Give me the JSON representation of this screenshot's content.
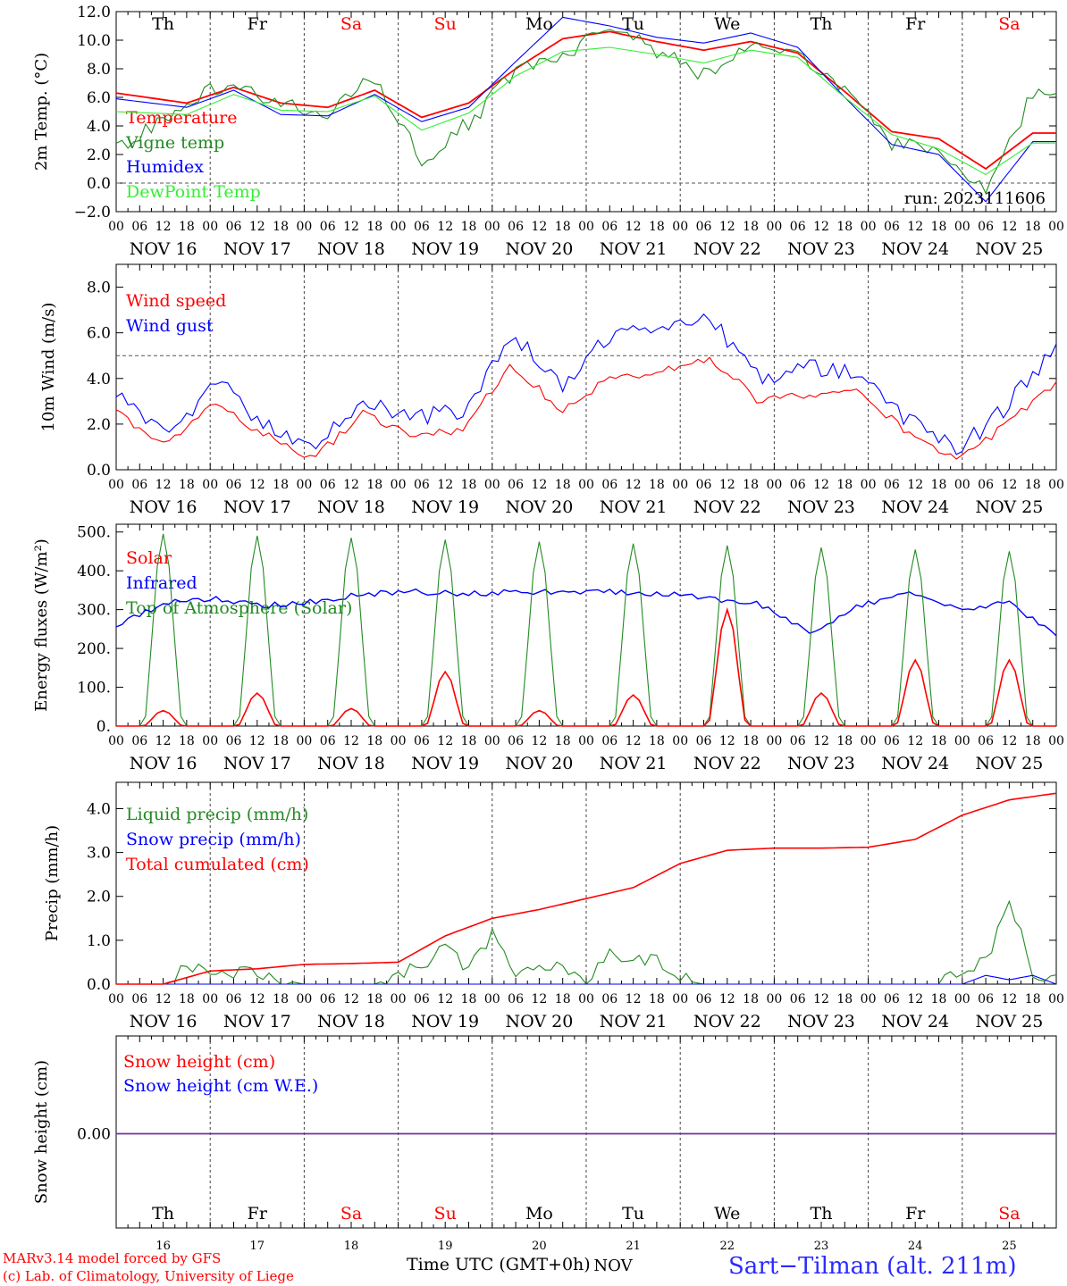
{
  "chart_data": [
    {
      "type": "line",
      "ylabel": "2m Temp. (°C)",
      "ylim": [
        -2,
        12
      ],
      "yticks": [
        "-2.0",
        "0.0",
        "2.0",
        "4.0",
        "6.0",
        "8.0",
        "10.0",
        "12.0"
      ],
      "reference_line": 0,
      "annotation": "run: 2023111606",
      "day_labels": [
        "Th",
        "Fr",
        "Sa",
        "Su",
        "Mo",
        "Tu",
        "We",
        "Th",
        "Fr",
        "Sa"
      ],
      "series": [
        {
          "name": "Temperature",
          "color": "#ff0000",
          "x": [
            0,
            18,
            30,
            42,
            54,
            66,
            78,
            90,
            102,
            114,
            126,
            138,
            150,
            162,
            174,
            186,
            198,
            210,
            222,
            234
          ],
          "values": [
            6.3,
            5.6,
            6.7,
            5.6,
            5.3,
            6.5,
            4.6,
            5.6,
            8.0,
            10.1,
            10.6,
            9.9,
            9.3,
            9.9,
            9.1,
            6.4,
            3.6,
            3.1,
            1.0,
            3.5
          ]
        },
        {
          "name": "Vigne temp",
          "color": "#228b22",
          "x": [
            0,
            18,
            30,
            42,
            54,
            66,
            78,
            90,
            102,
            114,
            126,
            138,
            150,
            162,
            174,
            186,
            198,
            210,
            222,
            234
          ],
          "values": [
            2.5,
            5.4,
            7.4,
            5.4,
            5.0,
            7.4,
            1.6,
            4.2,
            7.8,
            9.0,
            10.9,
            9.2,
            7.5,
            9.4,
            8.9,
            6.6,
            2.8,
            2.0,
            -0.5,
            6.2
          ]
        },
        {
          "name": "Humidex",
          "color": "#0000ff",
          "x": [
            0,
            18,
            30,
            42,
            54,
            66,
            78,
            90,
            102,
            114,
            126,
            138,
            150,
            162,
            174,
            186,
            198,
            210,
            222,
            234
          ],
          "values": [
            5.9,
            5.3,
            6.5,
            4.8,
            4.7,
            6.2,
            4.3,
            5.3,
            8.5,
            11.6,
            11.0,
            10.2,
            9.8,
            10.5,
            9.5,
            6.0,
            2.7,
            2.0,
            -1.3,
            2.9
          ]
        },
        {
          "name": "DewPoint Temp",
          "color": "#33ee33",
          "x": [
            0,
            18,
            30,
            42,
            54,
            66,
            78,
            90,
            102,
            114,
            126,
            138,
            150,
            162,
            174,
            186,
            198,
            210,
            222,
            234
          ],
          "values": [
            5.0,
            4.8,
            6.2,
            5.1,
            5.0,
            6.1,
            3.7,
            4.9,
            7.5,
            9.2,
            9.5,
            9.0,
            8.4,
            9.3,
            8.8,
            6.0,
            3.4,
            2.4,
            0.6,
            2.8
          ]
        }
      ]
    },
    {
      "type": "line",
      "ylabel": "10m Wind (m/s)",
      "ylim": [
        0,
        9
      ],
      "yticks": [
        "0.0",
        "2.0",
        "4.0",
        "6.0",
        "8.0"
      ],
      "reference_line": 5,
      "series": [
        {
          "name": "Wind speed",
          "color": "#ff0000",
          "values": [
            2.5,
            1.0,
            2.9,
            1.5,
            0.5,
            2.5,
            1.5,
            1.8,
            4.6,
            2.6,
            4.0,
            4.3,
            4.9,
            3.0,
            3.3,
            3.4,
            1.6,
            0.4,
            2.0,
            3.9
          ]
        },
        {
          "name": "Wind gust",
          "color": "#0000ff",
          "values": [
            3.3,
            1.4,
            3.9,
            2.0,
            0.9,
            3.1,
            2.3,
            2.5,
            6.1,
            3.5,
            6.0,
            6.3,
            6.6,
            4.0,
            4.5,
            4.3,
            2.2,
            0.8,
            2.8,
            5.4
          ]
        }
      ]
    },
    {
      "type": "line",
      "ylabel": "Energy fluxes (W/m²)",
      "ylim": [
        0,
        520
      ],
      "yticks": [
        "0.",
        "100.",
        "200.",
        "300.",
        "400.",
        "500."
      ],
      "series": [
        {
          "name": "Solar",
          "color": "#ff0000",
          "peaks": [
            40,
            85,
            45,
            140,
            40,
            80,
            300,
            85,
            170,
            170
          ]
        },
        {
          "name": "Infrared",
          "color": "#0000ff",
          "values": [
            255,
            320,
            330,
            310,
            320,
            340,
            345,
            340,
            345,
            345,
            345,
            340,
            330,
            315,
            240,
            310,
            340,
            300,
            320,
            240
          ]
        },
        {
          "name": "Top of Atmosphere (Solar)",
          "color": "#228b22",
          "peaks": [
            495,
            490,
            485,
            480,
            475,
            470,
            465,
            460,
            455,
            450
          ]
        }
      ]
    },
    {
      "type": "line",
      "ylabel": "Precip (mm/h)",
      "ylim": [
        0,
        4.6
      ],
      "yticks": [
        "0.0",
        "1.0",
        "2.0",
        "3.0",
        "4.0"
      ],
      "series": [
        {
          "name": "Liquid precip (mm/h)",
          "color": "#228b22",
          "x": [
            0,
            12,
            18,
            24,
            36,
            48,
            60,
            66,
            72,
            78,
            84,
            90,
            96,
            102,
            108,
            114,
            120,
            126,
            132,
            138,
            144,
            150,
            156,
            162,
            168,
            174,
            180,
            186,
            192,
            198,
            204,
            210,
            216,
            222,
            228,
            234,
            240
          ],
          "values": [
            0,
            0,
            0.4,
            0.3,
            0.2,
            0,
            0,
            0,
            0.2,
            0.4,
            0.9,
            0.3,
            1.2,
            0.3,
            0.5,
            0.4,
            0,
            0.7,
            0.6,
            0.5,
            0.1,
            0,
            0,
            0,
            0,
            0,
            0,
            0,
            0,
            0,
            0,
            0,
            0.4,
            0.5,
            2.0,
            0.3,
            0.1
          ]
        },
        {
          "name": "Snow precip (mm/h)",
          "color": "#0000ff",
          "x": [
            0,
            210,
            216,
            222,
            228,
            234,
            240
          ],
          "values": [
            0,
            0,
            0,
            0.2,
            0.1,
            0.2,
            0
          ]
        },
        {
          "name": "Total cumulated (cm)",
          "color": "#ff0000",
          "x": [
            0,
            12,
            24,
            36,
            48,
            60,
            72,
            84,
            96,
            108,
            120,
            132,
            144,
            156,
            168,
            180,
            192,
            204,
            216,
            228,
            240
          ],
          "values": [
            0,
            0,
            0.3,
            0.35,
            0.45,
            0.47,
            0.5,
            1.1,
            1.5,
            1.7,
            1.95,
            2.2,
            2.75,
            3.05,
            3.1,
            3.1,
            3.12,
            3.3,
            3.85,
            4.2,
            4.35
          ]
        }
      ]
    },
    {
      "type": "line",
      "ylabel": "Snow height (cm)",
      "yticks": [
        "0.00"
      ],
      "series": [
        {
          "name": "Snow height (cm)",
          "color": "#ff0000",
          "values": [
            0,
            0
          ]
        },
        {
          "name": "Snow height (cm W.E.)",
          "color": "#0000ff",
          "values": [
            0,
            0
          ]
        }
      ]
    }
  ],
  "time_axis": {
    "hour_ticks": [
      "00",
      "06",
      "12",
      "18"
    ],
    "date_labels": [
      "NOV 16",
      "NOV 17",
      "NOV 18",
      "NOV 19",
      "NOV 20",
      "NOV 21",
      "NOV 22",
      "NOV 23",
      "NOV 24",
      "NOV 25"
    ],
    "day_names": [
      "Th",
      "Fr",
      "Sa",
      "Su",
      "Mo",
      "Tu",
      "We",
      "Th",
      "Fr",
      "Sa"
    ],
    "day_numbers": [
      "16",
      "17",
      "18",
      "19",
      "20",
      "21",
      "22",
      "23",
      "24",
      "25"
    ],
    "month": "NOV",
    "weekend_color": "#ff0000"
  },
  "footer": {
    "credit_line1": "MARv3.14 model forced by GFS",
    "credit_line2": "(c) Lab. of Climatology, University of Liege",
    "xaxis_title": "Time UTC (GMT+0h)",
    "station": "Sart−Tilman (alt. 211m)"
  }
}
